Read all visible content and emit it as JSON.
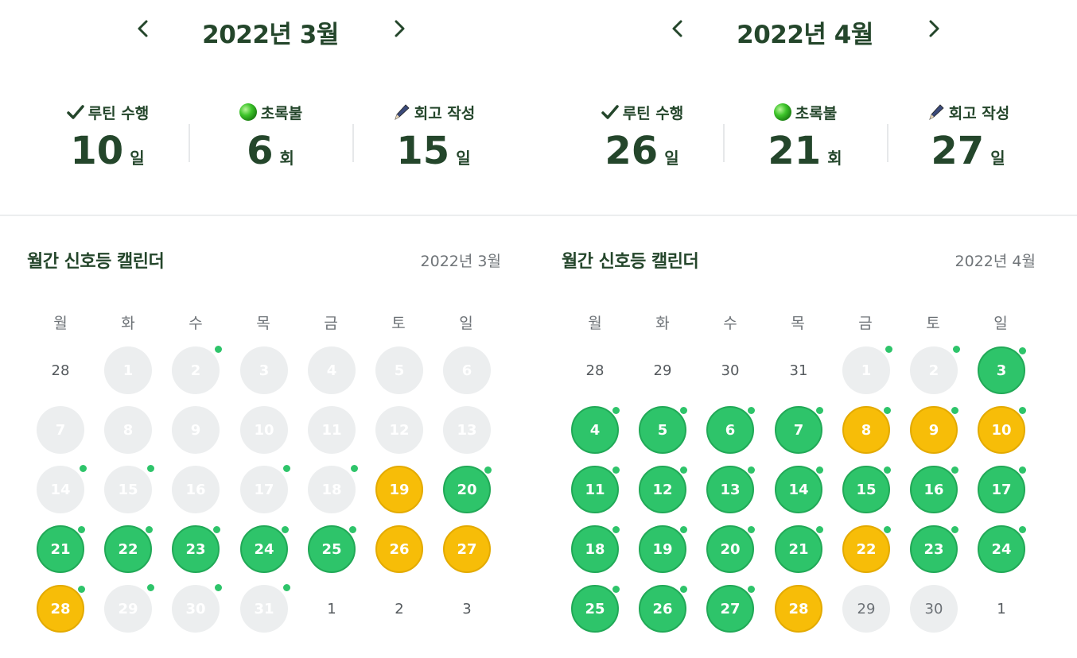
{
  "panels": [
    {
      "month_title": "2022년 3월",
      "stats": [
        {
          "label": "루틴 수행",
          "value": "10",
          "unit": "일",
          "icon": "check-icon"
        },
        {
          "label": "초록불",
          "value": "6",
          "unit": "회",
          "icon": "green-light-icon"
        },
        {
          "label": "회고 작성",
          "value": "15",
          "unit": "일",
          "icon": "pen-icon"
        }
      ],
      "calendar_title": "월간 신호등 캘린더",
      "calendar_subtitle": "2022년 3월",
      "weekdays": [
        "월",
        "화",
        "수",
        "목",
        "금",
        "토",
        "일"
      ],
      "days": [
        {
          "label": "28",
          "status": "none",
          "dot": false
        },
        {
          "label": "1",
          "status": "gray",
          "dot": false
        },
        {
          "label": "2",
          "status": "gray",
          "dot": true
        },
        {
          "label": "3",
          "status": "gray",
          "dot": false
        },
        {
          "label": "4",
          "status": "gray",
          "dot": false
        },
        {
          "label": "5",
          "status": "gray",
          "dot": false
        },
        {
          "label": "6",
          "status": "gray",
          "dot": false
        },
        {
          "label": "7",
          "status": "gray",
          "dot": false
        },
        {
          "label": "8",
          "status": "gray",
          "dot": false
        },
        {
          "label": "9",
          "status": "gray",
          "dot": false
        },
        {
          "label": "10",
          "status": "gray",
          "dot": false
        },
        {
          "label": "11",
          "status": "gray",
          "dot": false
        },
        {
          "label": "12",
          "status": "gray",
          "dot": false
        },
        {
          "label": "13",
          "status": "gray",
          "dot": false
        },
        {
          "label": "14",
          "status": "gray",
          "dot": true
        },
        {
          "label": "15",
          "status": "gray",
          "dot": true
        },
        {
          "label": "16",
          "status": "gray",
          "dot": false
        },
        {
          "label": "17",
          "status": "gray",
          "dot": true
        },
        {
          "label": "18",
          "status": "gray",
          "dot": true
        },
        {
          "label": "19",
          "status": "yellow",
          "dot": false
        },
        {
          "label": "20",
          "status": "green",
          "dot": true
        },
        {
          "label": "21",
          "status": "green",
          "dot": true
        },
        {
          "label": "22",
          "status": "green",
          "dot": true
        },
        {
          "label": "23",
          "status": "green",
          "dot": true
        },
        {
          "label": "24",
          "status": "green",
          "dot": true
        },
        {
          "label": "25",
          "status": "green",
          "dot": true
        },
        {
          "label": "26",
          "status": "yellow",
          "dot": false
        },
        {
          "label": "27",
          "status": "yellow",
          "dot": false
        },
        {
          "label": "28",
          "status": "yellow",
          "dot": true
        },
        {
          "label": "29",
          "status": "gray",
          "dot": true
        },
        {
          "label": "30",
          "status": "gray",
          "dot": true
        },
        {
          "label": "31",
          "status": "gray",
          "dot": true
        },
        {
          "label": "1",
          "status": "none",
          "dot": false
        },
        {
          "label": "2",
          "status": "none",
          "dot": false
        },
        {
          "label": "3",
          "status": "none",
          "dot": false
        }
      ]
    },
    {
      "month_title": "2022년 4월",
      "stats": [
        {
          "label": "루틴 수행",
          "value": "26",
          "unit": "일",
          "icon": "check-icon"
        },
        {
          "label": "초록불",
          "value": "21",
          "unit": "회",
          "icon": "green-light-icon"
        },
        {
          "label": "회고 작성",
          "value": "27",
          "unit": "일",
          "icon": "pen-icon"
        }
      ],
      "calendar_title": "월간 신호등 캘린더",
      "calendar_subtitle": "2022년 4월",
      "weekdays": [
        "월",
        "화",
        "수",
        "목",
        "금",
        "토",
        "일"
      ],
      "days": [
        {
          "label": "28",
          "status": "none",
          "dot": false
        },
        {
          "label": "29",
          "status": "none",
          "dot": false
        },
        {
          "label": "30",
          "status": "none",
          "dot": false
        },
        {
          "label": "31",
          "status": "none",
          "dot": false
        },
        {
          "label": "1",
          "status": "gray",
          "dot": true
        },
        {
          "label": "2",
          "status": "gray",
          "dot": true
        },
        {
          "label": "3",
          "status": "green",
          "dot": true
        },
        {
          "label": "4",
          "status": "green",
          "dot": true
        },
        {
          "label": "5",
          "status": "green",
          "dot": true
        },
        {
          "label": "6",
          "status": "green",
          "dot": true
        },
        {
          "label": "7",
          "status": "green",
          "dot": true
        },
        {
          "label": "8",
          "status": "yellow",
          "dot": true
        },
        {
          "label": "9",
          "status": "yellow",
          "dot": true
        },
        {
          "label": "10",
          "status": "yellow",
          "dot": true
        },
        {
          "label": "11",
          "status": "green",
          "dot": true
        },
        {
          "label": "12",
          "status": "green",
          "dot": true
        },
        {
          "label": "13",
          "status": "green",
          "dot": true
        },
        {
          "label": "14",
          "status": "green",
          "dot": true
        },
        {
          "label": "15",
          "status": "green",
          "dot": true
        },
        {
          "label": "16",
          "status": "green",
          "dot": true
        },
        {
          "label": "17",
          "status": "green",
          "dot": true
        },
        {
          "label": "18",
          "status": "green",
          "dot": true
        },
        {
          "label": "19",
          "status": "green",
          "dot": true
        },
        {
          "label": "20",
          "status": "green",
          "dot": true
        },
        {
          "label": "21",
          "status": "green",
          "dot": true
        },
        {
          "label": "22",
          "status": "yellow",
          "dot": true
        },
        {
          "label": "23",
          "status": "green",
          "dot": true
        },
        {
          "label": "24",
          "status": "green",
          "dot": true
        },
        {
          "label": "25",
          "status": "green",
          "dot": true
        },
        {
          "label": "26",
          "status": "green",
          "dot": true
        },
        {
          "label": "27",
          "status": "green",
          "dot": true
        },
        {
          "label": "28",
          "status": "yellow",
          "dot": false
        },
        {
          "label": "29",
          "status": "gray-dark",
          "dot": false
        },
        {
          "label": "30",
          "status": "gray-dark",
          "dot": false
        },
        {
          "label": "1",
          "status": "none",
          "dot": false
        }
      ]
    }
  ],
  "colors": {
    "text_dark": "#24462b",
    "green": "#2ec46a",
    "yellow": "#f7bd08",
    "gray": "#eceeef"
  }
}
